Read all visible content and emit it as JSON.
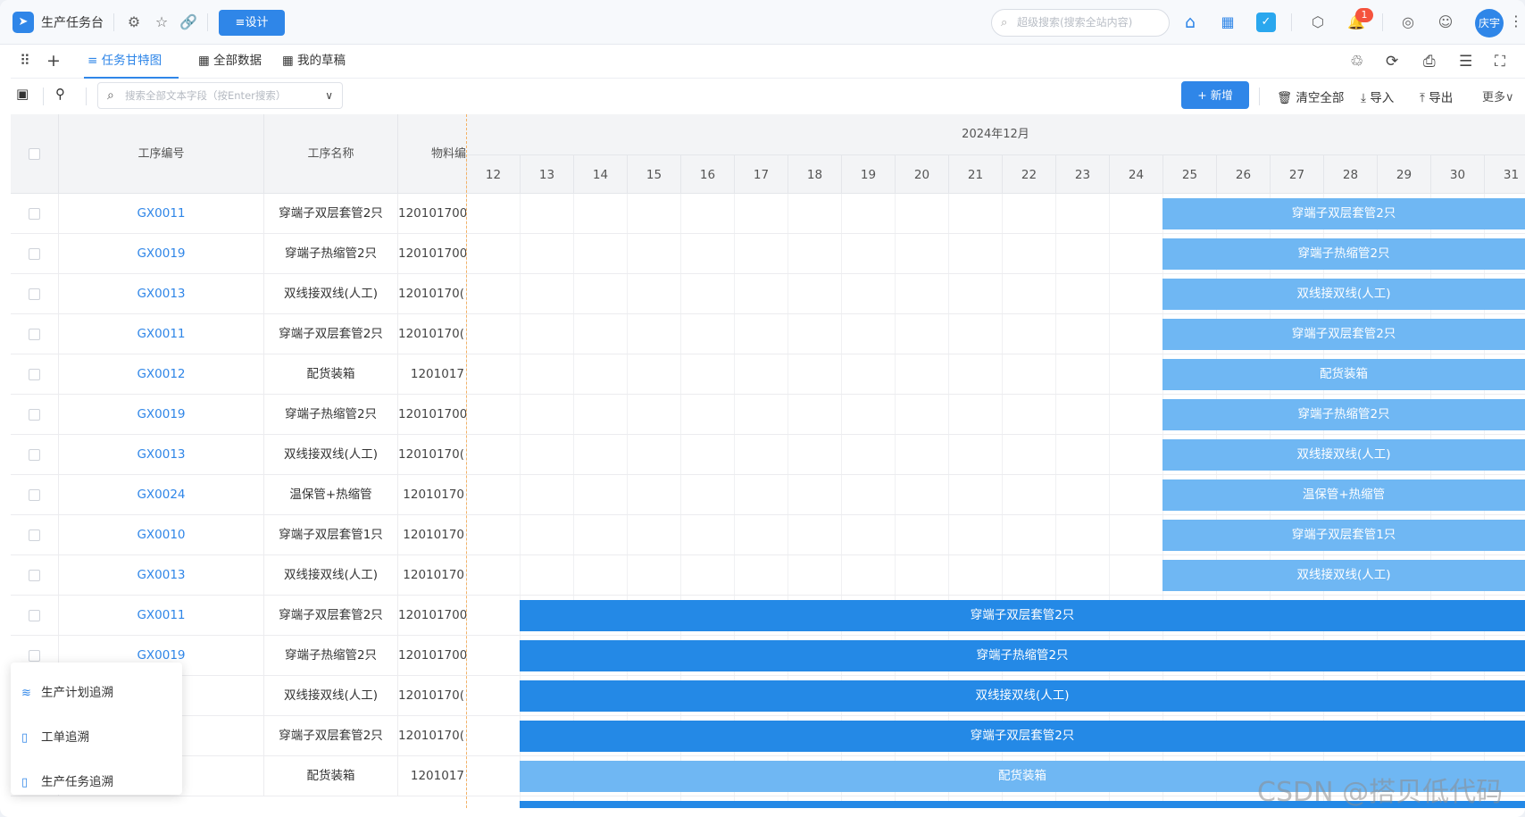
{
  "app": {
    "logo_icon": "➤",
    "title": "生产任务台",
    "design_label": "≡设计"
  },
  "topbar": {
    "search_placeholder": "超级搜索(搜索全站内容)",
    "notification_count": "1",
    "user_avatar": "庆宇"
  },
  "tabs": [
    {
      "label": "≡ 任务甘特图",
      "active": true
    },
    {
      "label": "▦ 全部数据",
      "active": false
    },
    {
      "label": "▦ 我的草稿",
      "active": false
    }
  ],
  "toolbar": {
    "search_placeholder": "搜索全部文本字段（按Enter搜索）",
    "add_label": "+ 新增",
    "clear_label": "🗑 清空全部",
    "import_label": "⤓ 导入",
    "export_label": "⤒ 导出",
    "more_label": "更多∨"
  },
  "grid": {
    "headers": {
      "code": "工序编号",
      "name": "工序名称",
      "material": "物料编"
    },
    "month": "2024年12月",
    "days": [
      "12",
      "13",
      "14",
      "15",
      "16",
      "17",
      "18",
      "19",
      "20",
      "21",
      "22",
      "23",
      "24",
      "25",
      "26",
      "27",
      "28",
      "29",
      "30",
      "31"
    ],
    "rows": [
      {
        "code": "GX0011",
        "name": "穿端子双层套管2只",
        "material": "120101700",
        "bar": "穿端子双层套管2只"
      },
      {
        "code": "GX0019",
        "name": "穿端子热缩管2只",
        "material": "120101700",
        "bar": "穿端子热缩管2只"
      },
      {
        "code": "GX0013",
        "name": "双线接双线(人工)",
        "material": "12010170(",
        "bar": "双线接双线(人工)"
      },
      {
        "code": "GX0011",
        "name": "穿端子双层套管2只",
        "material": "12010170(",
        "bar": "穿端子双层套管2只"
      },
      {
        "code": "GX0012",
        "name": "配货装箱",
        "material": "1201017",
        "bar": "配货装箱"
      },
      {
        "code": "GX0019",
        "name": "穿端子热缩管2只",
        "material": "120101700",
        "bar": "穿端子热缩管2只"
      },
      {
        "code": "GX0013",
        "name": "双线接双线(人工)",
        "material": "12010170(",
        "bar": "双线接双线(人工)"
      },
      {
        "code": "GX0024",
        "name": "温保管+热缩管",
        "material": "12010170",
        "bar": "温保管+热缩管"
      },
      {
        "code": "GX0010",
        "name": "穿端子双层套管1只",
        "material": "12010170",
        "bar": "穿端子双层套管1只"
      },
      {
        "code": "GX0013",
        "name": "双线接双线(人工)",
        "material": "12010170",
        "bar": "双线接双线(人工)"
      },
      {
        "code": "GX0011",
        "name": "穿端子双层套管2只",
        "material": "120101700",
        "bar": "穿端子双层套管2只"
      },
      {
        "code": "GX0019",
        "name": "穿端子热缩管2只",
        "material": "120101700",
        "bar": "穿端子热缩管2只"
      },
      {
        "code": "",
        "name": "双线接双线(人工)",
        "material": "12010170(",
        "bar": "双线接双线(人工)"
      },
      {
        "code": "",
        "name": "穿端子双层套管2只",
        "material": "12010170(",
        "bar": "穿端子双层套管2只"
      },
      {
        "code": "",
        "name": "配货装箱",
        "material": "1201017",
        "bar": "配货装箱"
      }
    ]
  },
  "popup": {
    "items": [
      {
        "icon": "≋",
        "label": "生产计划追溯"
      },
      {
        "icon": "▯",
        "label": "工单追溯"
      },
      {
        "icon": "▯",
        "label": "生产任务追溯"
      }
    ]
  },
  "watermark": "CSDN @搭贝低代码",
  "colors": {
    "accent": "#2f86e8",
    "bar_light": "#6fb7f3",
    "bar_dark": "#2489e6"
  }
}
